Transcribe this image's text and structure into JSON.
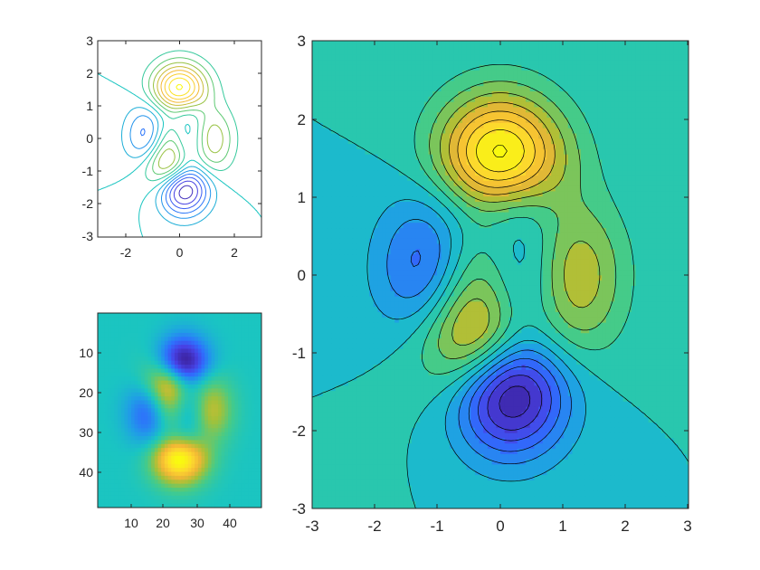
{
  "chart_data": [
    {
      "type": "contour",
      "function": "peaks",
      "x_range": [
        -3,
        3
      ],
      "y_range": [
        -3,
        3
      ],
      "filled": false,
      "colormap": "parula",
      "xticks": [
        "-2",
        "0",
        "2"
      ],
      "yticks": [
        "3",
        "2",
        "1",
        "0",
        "-1",
        "-2",
        "-3"
      ]
    },
    {
      "type": "heatmap",
      "function": "peaks",
      "grid_size": 49,
      "colormap": "parula",
      "y_direction": "reverse",
      "xticks": [
        "10",
        "20",
        "30",
        "40"
      ],
      "yticks": [
        "10",
        "20",
        "30",
        "40"
      ]
    },
    {
      "type": "contourf",
      "function": "peaks",
      "x_range": [
        -3,
        3
      ],
      "y_range": [
        -3,
        3
      ],
      "filled": true,
      "line_color": "#000000",
      "colormap": "parula",
      "xticks": [
        "-3",
        "-2",
        "-1",
        "0",
        "1",
        "2",
        "3"
      ],
      "yticks": [
        "3",
        "2",
        "1",
        "0",
        "-1",
        "-2",
        "-3"
      ]
    }
  ],
  "colors": {
    "axis": "#262626",
    "parula": [
      "#3e26a8",
      "#4742e5",
      "#2f6efd",
      "#209ee6",
      "#1ac5c2",
      "#48cb86",
      "#a4c138",
      "#f2b635",
      "#fcd82e",
      "#f9fb0e"
    ]
  }
}
